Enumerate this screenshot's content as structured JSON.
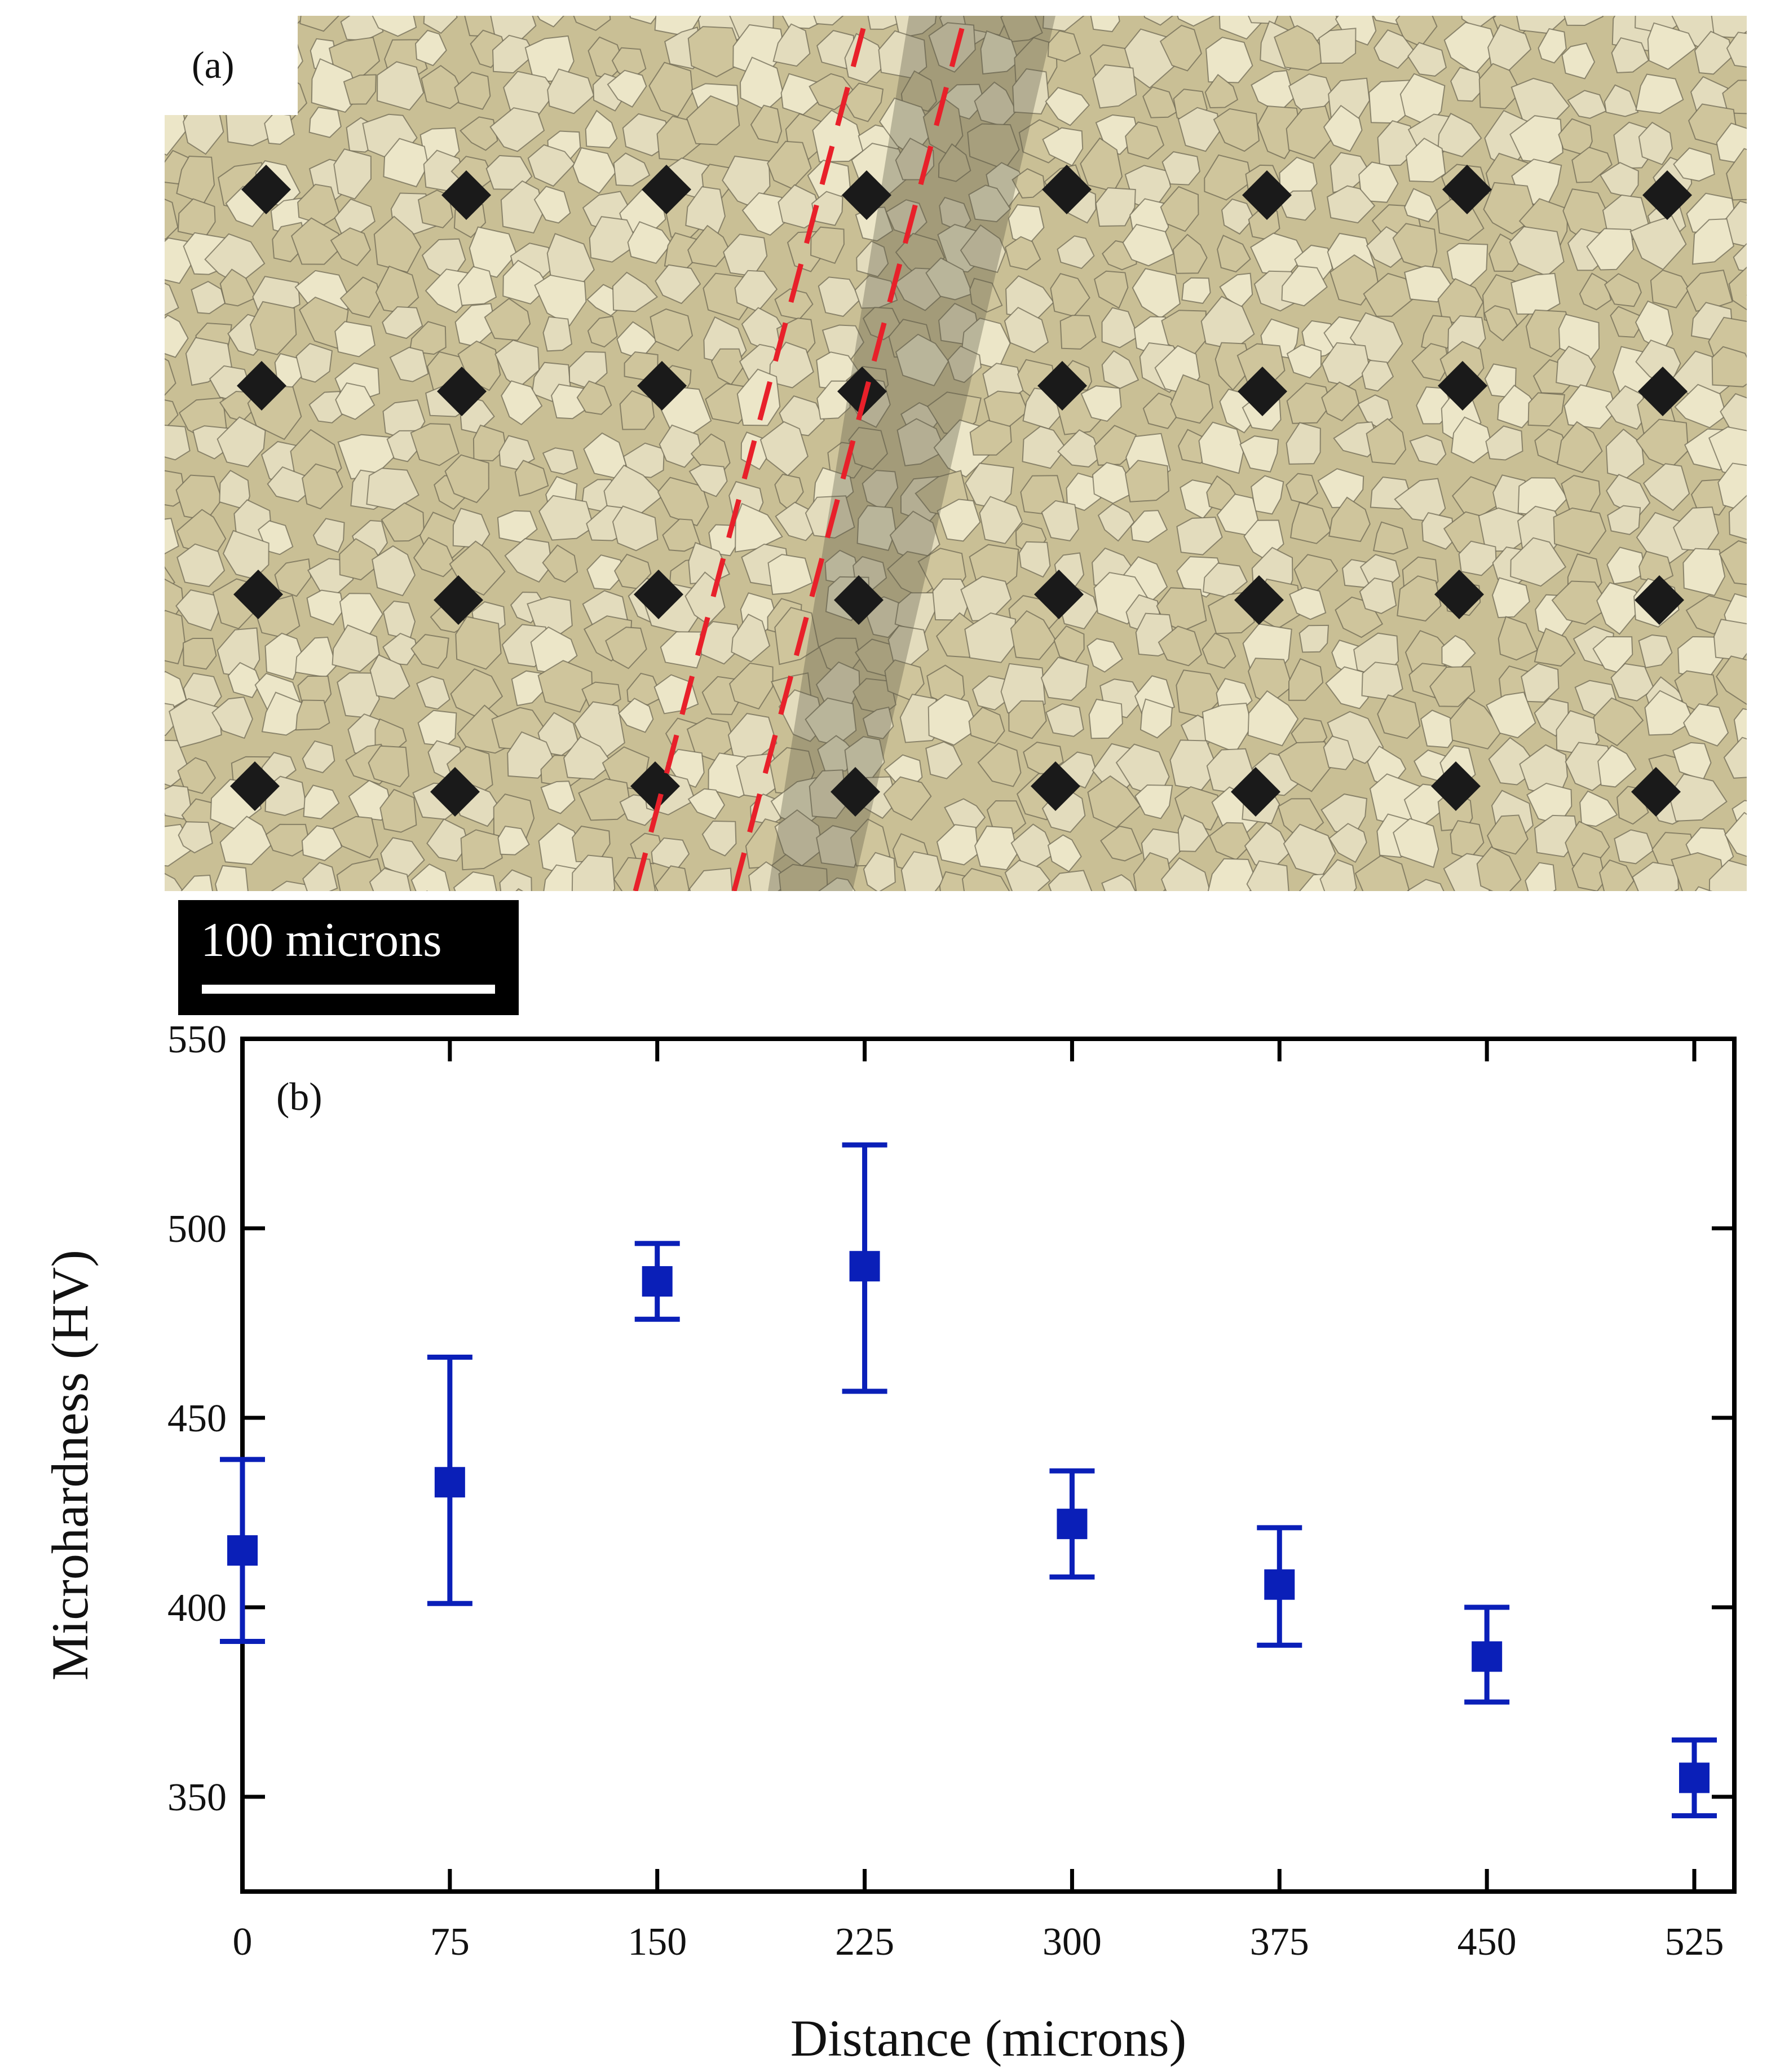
{
  "micrograph": {
    "panel_label": "(a)",
    "scale_bar_label": "100 microns",
    "background_color": "#c9bf95",
    "grain_color": "#e3dcbd",
    "grain_boundary_color": "#6a6450",
    "indent_color": "#1a1a1a",
    "boundary_line_color": "#e8202a",
    "indent_rows": 4,
    "indent_columns": 8
  },
  "chart_data": {
    "type": "scatter",
    "panel_label": "(b)",
    "xlabel": "Distance (microns)",
    "ylabel": "Microhardness (HV)",
    "x_ticks": [
      0,
      75,
      150,
      225,
      300,
      375,
      450,
      525
    ],
    "x_tick_labels": [
      "0",
      "75",
      "150",
      "225",
      "300",
      "375",
      "450",
      "525"
    ],
    "y_ticks": [
      350,
      400,
      450,
      500,
      550
    ],
    "y_tick_labels": [
      "350",
      "400",
      "450",
      "500",
      "550"
    ],
    "xlim": [
      0,
      525
    ],
    "ylim": [
      325,
      550
    ],
    "grid": false,
    "series": [
      {
        "color": "#0a1fb8",
        "marker": "square",
        "points": [
          {
            "x": 0,
            "y": 415,
            "err_low": 391,
            "err_high": 439
          },
          {
            "x": 75,
            "y": 433,
            "err_low": 401,
            "err_high": 466
          },
          {
            "x": 150,
            "y": 486,
            "err_low": 476,
            "err_high": 496
          },
          {
            "x": 225,
            "y": 490,
            "err_low": 457,
            "err_high": 522
          },
          {
            "x": 300,
            "y": 422,
            "err_low": 408,
            "err_high": 436
          },
          {
            "x": 375,
            "y": 406,
            "err_low": 390,
            "err_high": 421
          },
          {
            "x": 450,
            "y": 387,
            "err_low": 375,
            "err_high": 400
          },
          {
            "x": 525,
            "y": 355,
            "err_low": 345,
            "err_high": 365
          }
        ]
      }
    ]
  }
}
